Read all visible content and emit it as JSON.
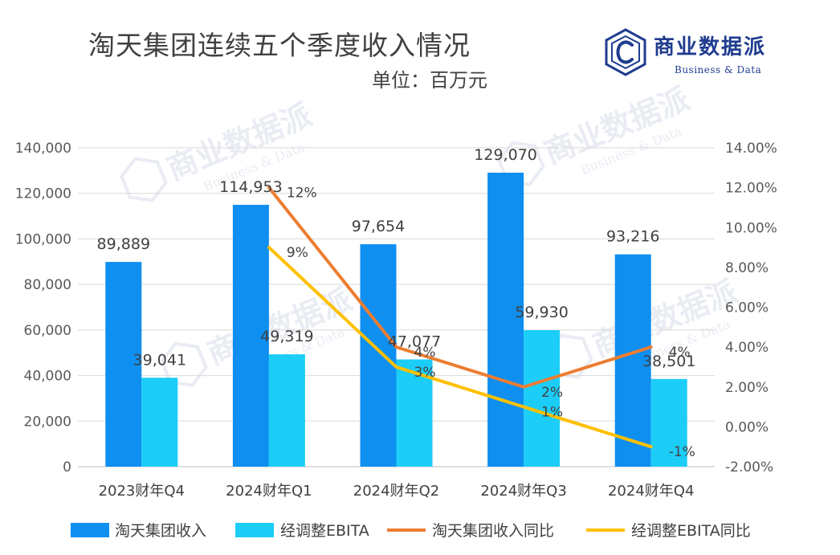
{
  "title": "淘天集团连续五个季度收入情况",
  "unit": "单位：百万元",
  "logo": {
    "name": "商业数据派",
    "sub": "Business & Data",
    "watermark": "商业数据派",
    "watermark_sub": "Business & Data",
    "color": "#1f3c8f"
  },
  "chart_data": {
    "type": "bar",
    "categories": [
      "2023财年Q4",
      "2024财年Q1",
      "2024财年Q2",
      "2024财年Q3",
      "2024财年Q4"
    ],
    "series": [
      {
        "name": "淘天集团收入",
        "type": "bar",
        "axis": "left",
        "color": "#0f8ff0",
        "values": [
          89889,
          114953,
          97654,
          129070,
          93216
        ],
        "labels": [
          "89,889",
          "114,953",
          "97,654",
          "129,070",
          "93,216"
        ]
      },
      {
        "name": "经调整EBITA",
        "type": "bar",
        "axis": "left",
        "color": "#1ccdf8",
        "values": [
          39041,
          49319,
          47077,
          59930,
          38501
        ],
        "labels": [
          "39,041",
          "49,319",
          "47,077",
          "59,930",
          "38,501"
        ]
      },
      {
        "name": "淘天集团收入同比",
        "type": "line",
        "axis": "right",
        "color": "#ed7d31",
        "values": [
          null,
          0.12,
          0.04,
          0.02,
          0.04
        ],
        "labels": [
          "",
          "12%",
          "4%",
          "2%",
          "4%"
        ]
      },
      {
        "name": "经调整EBITA同比",
        "type": "line",
        "axis": "right",
        "color": "#ffc000",
        "values": [
          null,
          0.09,
          0.03,
          0.01,
          -0.01
        ],
        "labels": [
          "",
          "9%",
          "3%",
          "1%",
          "-1%"
        ]
      }
    ],
    "y_left": {
      "ylim": [
        0,
        140000
      ],
      "ticks": [
        "0",
        "20,000",
        "40,000",
        "60,000",
        "80,000",
        "100,000",
        "120,000",
        "140,000"
      ]
    },
    "y_right": {
      "ylim": [
        -0.02,
        0.14
      ],
      "ticks": [
        "-2.00%",
        "0.00%",
        "2.00%",
        "4.00%",
        "6.00%",
        "8.00%",
        "10.00%",
        "12.00%",
        "14.00%"
      ]
    },
    "grid": true,
    "legend_position": "bottom"
  }
}
